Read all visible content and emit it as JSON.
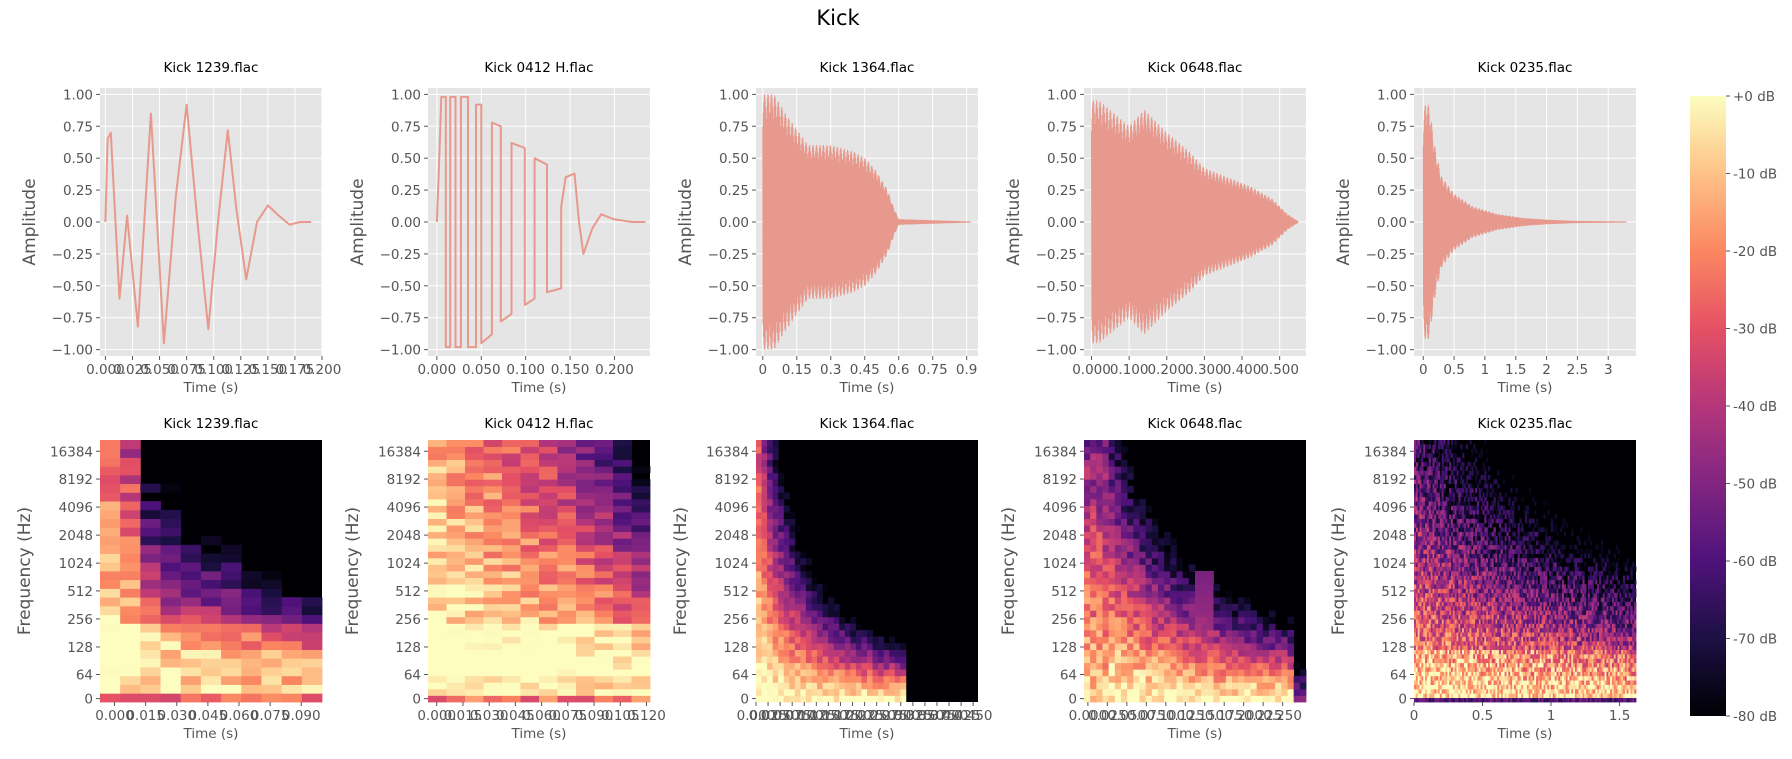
{
  "figure": {
    "title": "Kick"
  },
  "colors": {
    "waveform": "#e8998d",
    "axes_background": "#e5e5e5",
    "grid": "#ffffff",
    "colormap": "magma"
  },
  "chart_data": [
    {
      "type": "line",
      "kind": "waveform",
      "title": "Kick 1239.flac",
      "xlabel": "Time (s)",
      "ylabel": "Amplitude",
      "xlim": [
        -0.005,
        0.2
      ],
      "ylim": [
        -1.05,
        1.05
      ],
      "xticks": [
        0,
        0.025,
        0.05,
        0.075,
        0.1,
        0.125,
        0.15,
        0.175,
        0.2
      ],
      "xtick_labels": [
        "0.000",
        "0.025",
        "0.050",
        "0.075",
        "0.100",
        "0.125",
        "0.150",
        "0.175",
        "0.200"
      ],
      "yticks": [
        -1,
        -0.75,
        -0.5,
        -0.25,
        0,
        0.25,
        0.5,
        0.75,
        1
      ],
      "ytick_labels": [
        "−1.00",
        "−0.75",
        "−0.50",
        "−0.25",
        "0.00",
        "0.25",
        "0.50",
        "0.75",
        "1.00"
      ],
      "x": [
        0,
        0.002,
        0.005,
        0.013,
        0.02,
        0.03,
        0.042,
        0.054,
        0.065,
        0.075,
        0.085,
        0.095,
        0.104,
        0.113,
        0.121,
        0.13,
        0.14,
        0.15,
        0.16,
        0.17,
        0.18,
        0.19
      ],
      "y": [
        0,
        0.65,
        0.7,
        -0.6,
        0.05,
        -0.82,
        0.85,
        -0.95,
        0.2,
        0.92,
        0.0,
        -0.84,
        0.0,
        0.72,
        0.1,
        -0.45,
        0.0,
        0.13,
        0.05,
        -0.02,
        0.0,
        0.0
      ]
    },
    {
      "type": "line",
      "kind": "waveform",
      "title": "Kick 0412 H.flac",
      "xlabel": "Time (s)",
      "ylabel": "Amplitude",
      "xlim": [
        -0.01,
        0.24
      ],
      "ylim": [
        -1.05,
        1.05
      ],
      "xticks": [
        0,
        0.05,
        0.1,
        0.15,
        0.2
      ],
      "xtick_labels": [
        "0.000",
        "0.050",
        "0.100",
        "0.150",
        "0.200"
      ],
      "yticks": [
        -1,
        -0.75,
        -0.5,
        -0.25,
        0,
        0.25,
        0.5,
        0.75,
        1
      ],
      "ytick_labels": [
        "−1.00",
        "−0.75",
        "−0.50",
        "−0.25",
        "0.00",
        "0.25",
        "0.50",
        "0.75",
        "1.00"
      ],
      "x": [
        0,
        0.003,
        0.005,
        0.006,
        0.01,
        0.01,
        0.015,
        0.015,
        0.021,
        0.021,
        0.027,
        0.027,
        0.035,
        0.035,
        0.044,
        0.044,
        0.05,
        0.05,
        0.062,
        0.062,
        0.072,
        0.072,
        0.084,
        0.084,
        0.099,
        0.099,
        0.11,
        0.11,
        0.124,
        0.124,
        0.14,
        0.14,
        0.145,
        0.155,
        0.16,
        0.165,
        0.175,
        0.185,
        0.2,
        0.22,
        0.235
      ],
      "y": [
        0,
        0.55,
        0.98,
        0.98,
        0.98,
        -0.98,
        -0.98,
        0.98,
        0.98,
        -0.98,
        -0.98,
        0.98,
        0.98,
        -0.98,
        -0.98,
        0.92,
        0.92,
        -0.95,
        -0.88,
        0.78,
        0.75,
        -0.78,
        -0.72,
        0.62,
        0.58,
        -0.65,
        -0.6,
        0.5,
        0.45,
        -0.55,
        -0.52,
        0.12,
        0.35,
        0.38,
        0.0,
        -0.25,
        -0.05,
        0.06,
        0.02,
        0.0,
        0.0
      ]
    },
    {
      "type": "line",
      "kind": "waveform",
      "title": "Kick 1364.flac",
      "xlabel": "Time (s)",
      "ylabel": "Amplitude",
      "xlim": [
        -0.03,
        0.95
      ],
      "ylim": [
        -1.05,
        1.05
      ],
      "xticks": [
        0,
        0.15,
        0.3,
        0.45,
        0.6,
        0.75,
        0.9
      ],
      "xtick_labels": [
        "0",
        "0.15",
        "0.3",
        "0.45",
        "0.6",
        "0.75",
        "0.9"
      ],
      "yticks": [
        -1,
        -0.75,
        -0.5,
        -0.25,
        0,
        0.25,
        0.5,
        0.75,
        1
      ],
      "ytick_labels": [
        "−1.00",
        "−0.75",
        "−0.50",
        "−0.25",
        "0.00",
        "0.25",
        "0.50",
        "0.75",
        "1.00"
      ],
      "envelope_t": [
        0,
        0.05,
        0.1,
        0.2,
        0.3,
        0.4,
        0.45,
        0.5,
        0.55,
        0.58,
        0.6,
        0.92
      ],
      "envelope_a": [
        1,
        1,
        0.85,
        0.6,
        0.6,
        0.55,
        0.5,
        0.4,
        0.25,
        0.1,
        0.02,
        0
      ]
    },
    {
      "type": "line",
      "kind": "waveform",
      "title": "Kick 0648.flac",
      "xlabel": "Time (s)",
      "ylabel": "Amplitude",
      "xlim": [
        -0.02,
        0.57
      ],
      "ylim": [
        -1.05,
        1.05
      ],
      "xticks": [
        0,
        0.1,
        0.2,
        0.3,
        0.4,
        0.5
      ],
      "xtick_labels": [
        "0.000",
        "0.100",
        "0.200",
        "0.300",
        "0.400",
        "0.500"
      ],
      "yticks": [
        -1,
        -0.75,
        -0.5,
        -0.25,
        0,
        0.25,
        0.5,
        0.75,
        1
      ],
      "ytick_labels": [
        "−1.00",
        "−0.75",
        "−0.50",
        "−0.25",
        "0.00",
        "0.25",
        "0.50",
        "0.75",
        "1.00"
      ],
      "envelope_t": [
        0,
        0.02,
        0.06,
        0.1,
        0.14,
        0.2,
        0.26,
        0.3,
        0.36,
        0.42,
        0.48,
        0.52,
        0.54,
        0.55
      ],
      "envelope_a": [
        0.95,
        0.95,
        0.85,
        0.75,
        0.88,
        0.7,
        0.55,
        0.42,
        0.35,
        0.28,
        0.18,
        0.06,
        0.02,
        0
      ]
    },
    {
      "type": "line",
      "kind": "waveform",
      "title": "Kick 0235.flac",
      "xlabel": "Time (s)",
      "ylabel": "Amplitude",
      "xlim": [
        -0.15,
        3.45
      ],
      "ylim": [
        -1.05,
        1.05
      ],
      "xticks": [
        0,
        0.5,
        1,
        1.5,
        2,
        2.5,
        3
      ],
      "xtick_labels": [
        "0",
        "0.5",
        "1",
        "1.5",
        "2",
        "2.5",
        "3"
      ],
      "yticks": [
        -1,
        -0.75,
        -0.5,
        -0.25,
        0,
        0.25,
        0.5,
        0.75,
        1
      ],
      "ytick_labels": [
        "−1.00",
        "−0.75",
        "−0.50",
        "−0.25",
        "0.00",
        "0.25",
        "0.50",
        "0.75",
        "1.00"
      ],
      "envelope_t": [
        0,
        0.04,
        0.1,
        0.2,
        0.3,
        0.5,
        0.8,
        1.2,
        1.6,
        2.0,
        2.5,
        3.3
      ],
      "envelope_a": [
        0.8,
        0.95,
        0.9,
        0.55,
        0.35,
        0.22,
        0.12,
        0.06,
        0.03,
        0.015,
        0.005,
        0
      ]
    },
    {
      "type": "heatmap",
      "kind": "spectrogram",
      "title": "Kick 1239.flac",
      "xlabel": "Time (s)",
      "ylabel": "Frequency (Hz)",
      "xlim": [
        -0.007,
        0.1
      ],
      "xticks": [
        0,
        0.015,
        0.03,
        0.045,
        0.06,
        0.075,
        0.09
      ],
      "xtick_labels": [
        "0.000",
        "0.015",
        "0.030",
        "0.045",
        "0.060",
        "0.075",
        "0.090"
      ],
      "yticks": [
        0,
        64,
        128,
        256,
        512,
        1024,
        2048,
        4096,
        8192,
        16384
      ],
      "ytick_labels": [
        "0",
        "64",
        "128",
        "256",
        "512",
        "1024",
        "2048",
        "4096",
        "8192",
        "16384"
      ],
      "columns": 11,
      "rows": 30,
      "decay": [
        0.3,
        0.45,
        1.05,
        1.2,
        1.35,
        1.45,
        1.55,
        1.75,
        1.9,
        2.1,
        2.3
      ]
    },
    {
      "type": "heatmap",
      "kind": "spectrogram",
      "title": "Kick 0412 H.flac",
      "xlabel": "Time (s)",
      "ylabel": "Frequency (Hz)",
      "xlim": [
        -0.005,
        0.122
      ],
      "xticks": [
        0,
        0.015,
        0.03,
        0.045,
        0.06,
        0.075,
        0.09,
        0.105,
        0.12
      ],
      "xtick_labels": [
        "0.000",
        "0.015",
        "0.030",
        "0.045",
        "0.060",
        "0.075",
        "0.090",
        "0.105",
        "0.120"
      ],
      "yticks": [
        0,
        64,
        128,
        256,
        512,
        1024,
        2048,
        4096,
        8192,
        16384
      ],
      "ytick_labels": [
        "0",
        "64",
        "128",
        "256",
        "512",
        "1024",
        "2048",
        "4096",
        "8192",
        "16384"
      ],
      "columns": 12,
      "rows": 40,
      "decay": [
        0.15,
        0.2,
        0.25,
        0.3,
        0.35,
        0.4,
        0.45,
        0.5,
        0.6,
        0.7,
        0.85,
        1.0
      ]
    },
    {
      "type": "heatmap",
      "kind": "spectrogram",
      "title": "Kick 1364.flac",
      "xlabel": "Time (s)",
      "ylabel": "Frequency (Hz)",
      "xlim": [
        0,
        0.46
      ],
      "xticks": [
        0,
        0.025,
        0.05,
        0.075,
        0.1,
        0.125,
        0.15,
        0.175,
        0.2,
        0.225,
        0.25,
        0.275,
        0.3,
        0.325,
        0.35,
        0.375,
        0.4,
        0.425,
        0.45
      ],
      "xtick_labels": [
        "0.000",
        "0.025",
        "0.050",
        "0.075",
        "0.100",
        "0.125",
        "0.150",
        "0.175",
        "0.200",
        "0.225",
        "0.250",
        "0.275",
        "0.300",
        "0.325",
        "0.350",
        "0.375",
        "0.400",
        "0.425",
        "0.450"
      ],
      "yticks": [
        0,
        64,
        128,
        256,
        512,
        1024,
        2048,
        4096,
        8192,
        16384
      ],
      "ytick_labels": [
        "0",
        "64",
        "128",
        "256",
        "512",
        "1024",
        "2048",
        "4096",
        "8192",
        "16384"
      ],
      "columns": 40,
      "rows": 40,
      "cutoff": 0.31
    },
    {
      "type": "heatmap",
      "kind": "spectrogram",
      "title": "Kick 0648.flac",
      "xlabel": "Time (s)",
      "ylabel": "Frequency (Hz)",
      "xlim": [
        -0.005,
        0.28
      ],
      "xticks": [
        0,
        0.025,
        0.05,
        0.075,
        0.1,
        0.125,
        0.15,
        0.175,
        0.2,
        0.225,
        0.25
      ],
      "xtick_labels": [
        "0.000",
        "0.025",
        "0.050",
        "0.075",
        "0.100",
        "0.125",
        "0.150",
        "0.175",
        "0.200",
        "0.225",
        "0.250"
      ],
      "yticks": [
        0,
        64,
        128,
        256,
        512,
        1024,
        2048,
        4096,
        8192,
        16384
      ],
      "ytick_labels": [
        "0",
        "64",
        "128",
        "256",
        "512",
        "1024",
        "2048",
        "4096",
        "8192",
        "16384"
      ],
      "columns": 36,
      "rows": 40,
      "burst": 0.15
    },
    {
      "type": "heatmap",
      "kind": "spectrogram",
      "title": "Kick 0235.flac",
      "xlabel": "Time (s)",
      "ylabel": "Frequency (Hz)",
      "xlim": [
        0,
        1.62
      ],
      "xticks": [
        0,
        0.5,
        1,
        1.5
      ],
      "xtick_labels": [
        "0",
        "0.5",
        "1",
        "1.5"
      ],
      "yticks": [
        0,
        64,
        128,
        256,
        512,
        1024,
        2048,
        4096,
        8192,
        16384
      ],
      "ytick_labels": [
        "0",
        "64",
        "128",
        "256",
        "512",
        "1024",
        "2048",
        "4096",
        "8192",
        "16384"
      ],
      "columns": 120,
      "rows": 60
    },
    {
      "type": "colorbar",
      "colormap": "magma",
      "range_db": [
        -80,
        0
      ],
      "ticks": [
        0,
        -10,
        -20,
        -30,
        -40,
        -50,
        -60,
        -70,
        -80
      ],
      "tick_labels": [
        "+0 dB",
        "-10 dB",
        "-20 dB",
        "-30 dB",
        "-40 dB",
        "-50 dB",
        "-60 dB",
        "-70 dB",
        "-80 dB"
      ]
    }
  ]
}
